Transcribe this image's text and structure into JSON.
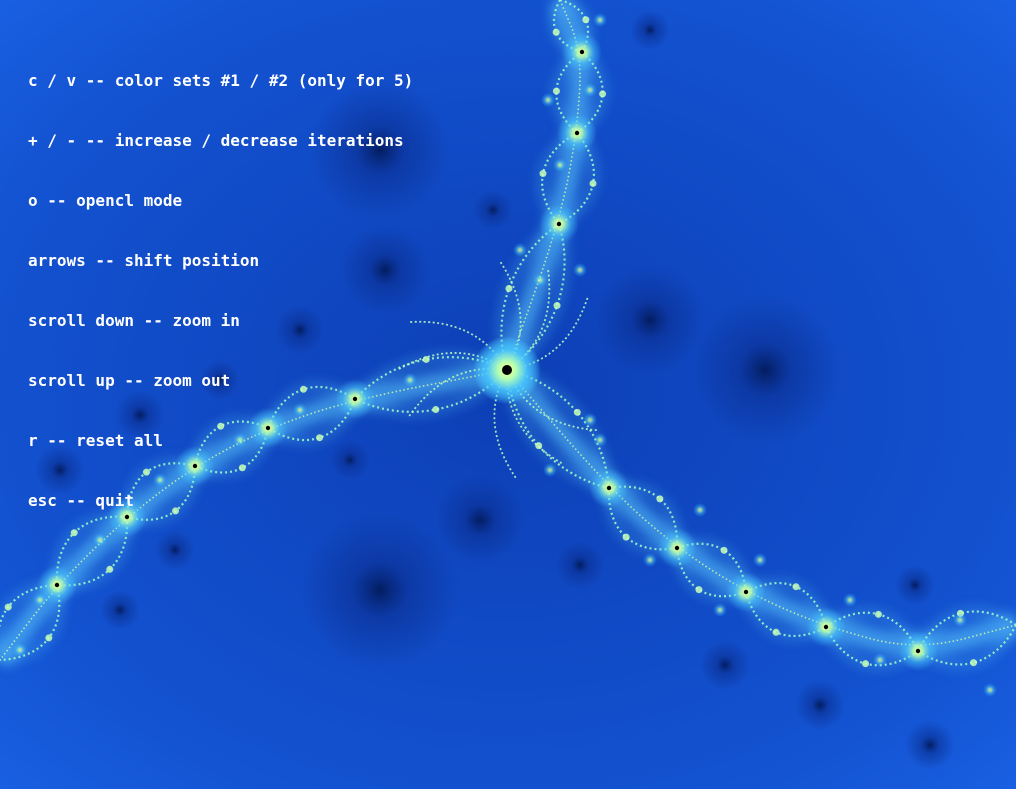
{
  "help": {
    "lines": [
      "c / v -- color sets #1 / #2 (only for 5)",
      "+ / - -- increase / decrease iterations",
      "o -- opencl mode",
      "arrows -- shift position",
      "scroll down -- zoom in",
      "scroll up -- zoom out",
      "r -- reset all",
      "esc -- quit"
    ]
  },
  "colors": {
    "background": "#1458d6",
    "deep": "#0838a8",
    "glow": "#5fd0ff",
    "filament": "#e8ff9a",
    "core": "#ffff66",
    "point": "#000000",
    "overlay_text": "#ffffff"
  }
}
